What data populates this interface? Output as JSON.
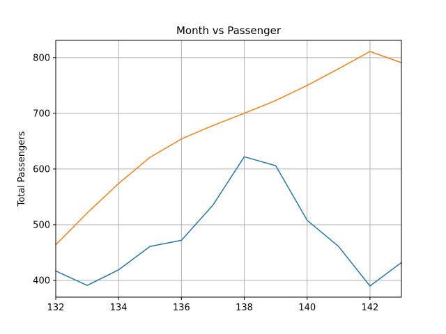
{
  "chart_data": {
    "type": "line",
    "title": "Month vs Passenger",
    "xlabel": "",
    "ylabel": "Total Passengers",
    "xlim": [
      132,
      143
    ],
    "ylim": [
      370,
      831
    ],
    "x": [
      132,
      133,
      134,
      135,
      136,
      137,
      138,
      139,
      140,
      141,
      142,
      143
    ],
    "xticks": [
      132,
      134,
      136,
      138,
      140,
      142
    ],
    "yticks": [
      400,
      500,
      600,
      700,
      800
    ],
    "grid": true,
    "series": [
      {
        "color": "#1f77b4",
        "values": [
          417,
          391,
          419,
          461,
          472,
          535,
          622,
          606,
          508,
          461,
          390,
          432
        ]
      },
      {
        "color": "#ff7f0e",
        "values": [
          464,
          521,
          574,
          621,
          654,
          678,
          700,
          723,
          750,
          780,
          811,
          791
        ]
      }
    ]
  }
}
